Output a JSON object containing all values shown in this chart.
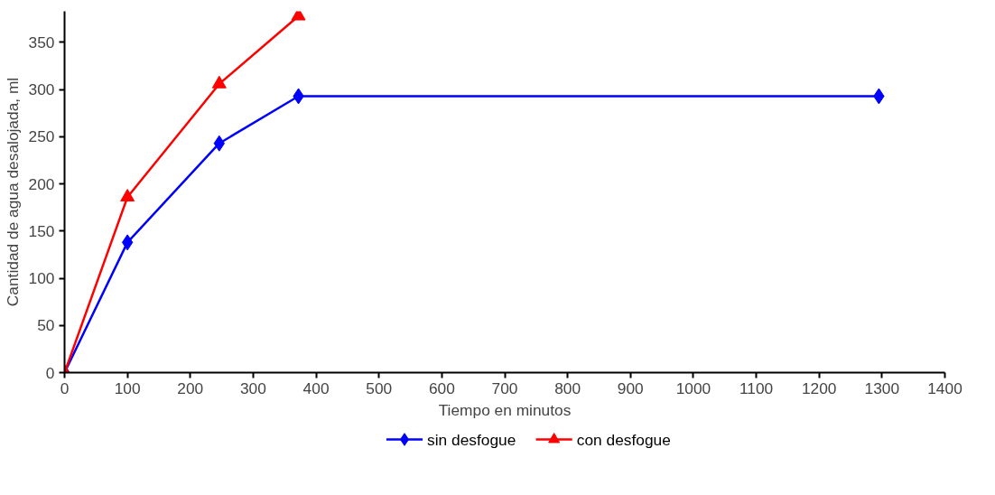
{
  "chart_data": {
    "type": "line",
    "xlabel": "Tiempo en minutos",
    "ylabel": "Cantidad de agua desalojada, ml",
    "xlim": [
      0,
      1400
    ],
    "xticks": [
      0,
      100,
      200,
      300,
      400,
      500,
      600,
      700,
      800,
      900,
      1000,
      1100,
      1200,
      1300,
      1400
    ],
    "ylim": [
      0,
      383
    ],
    "yticks": [
      0,
      50,
      100,
      150,
      200,
      250,
      300,
      350
    ],
    "grid": false,
    "legend": "bottom",
    "line_style": "solid",
    "series": [
      {
        "name": "sin desfogue",
        "color": "#0000ff",
        "marker": "diamond",
        "x": [
          0,
          100,
          246,
          372,
          1295
        ],
        "values": [
          0,
          138,
          243,
          293,
          293
        ]
      },
      {
        "name": "con desfogue",
        "color": "#ff0000",
        "marker": "triangle",
        "x": [
          0,
          100,
          246,
          372
        ],
        "values": [
          0,
          186,
          306,
          378
        ]
      }
    ]
  }
}
